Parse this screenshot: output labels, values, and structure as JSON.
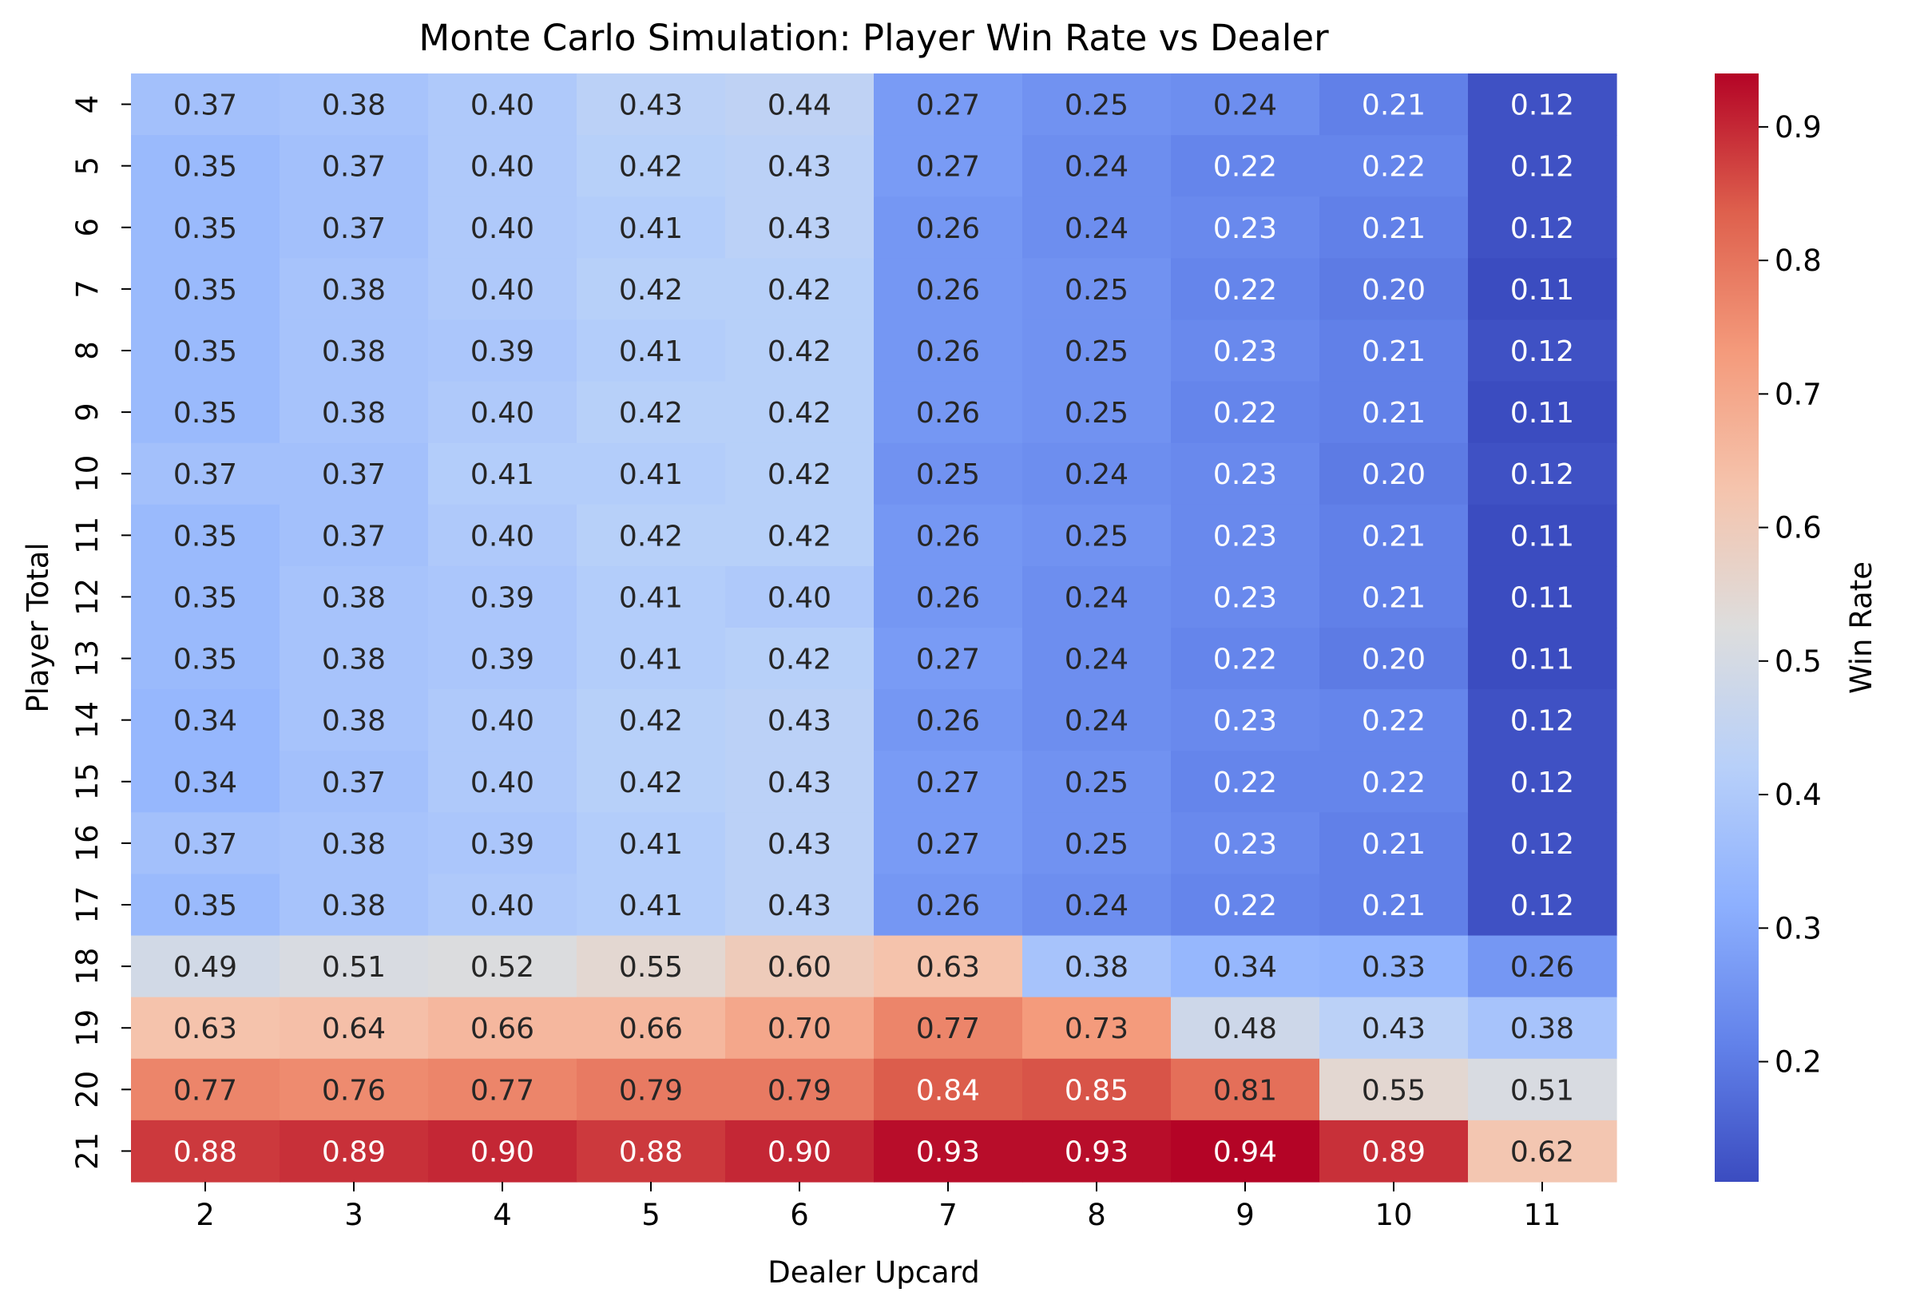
{
  "chart_data": {
    "type": "heatmap",
    "title": "Monte Carlo Simulation: Player Win Rate vs Dealer",
    "xlabel": "Dealer Upcard",
    "ylabel": "Player Total",
    "colorbar_label": "Win Rate",
    "colormap": "coolwarm",
    "x": [
      "2",
      "3",
      "4",
      "5",
      "6",
      "7",
      "8",
      "9",
      "10",
      "11"
    ],
    "y": [
      "4",
      "5",
      "6",
      "7",
      "8",
      "9",
      "10",
      "11",
      "12",
      "13",
      "14",
      "15",
      "16",
      "17",
      "18",
      "19",
      "20",
      "21"
    ],
    "values": [
      [
        0.37,
        0.38,
        0.4,
        0.43,
        0.44,
        0.27,
        0.25,
        0.24,
        0.21,
        0.12
      ],
      [
        0.35,
        0.37,
        0.4,
        0.42,
        0.43,
        0.27,
        0.24,
        0.22,
        0.22,
        0.12
      ],
      [
        0.35,
        0.37,
        0.4,
        0.41,
        0.43,
        0.26,
        0.24,
        0.23,
        0.21,
        0.12
      ],
      [
        0.35,
        0.38,
        0.4,
        0.42,
        0.42,
        0.26,
        0.25,
        0.22,
        0.2,
        0.11
      ],
      [
        0.35,
        0.38,
        0.39,
        0.41,
        0.42,
        0.26,
        0.25,
        0.23,
        0.21,
        0.12
      ],
      [
        0.35,
        0.38,
        0.4,
        0.42,
        0.42,
        0.26,
        0.25,
        0.22,
        0.21,
        0.11
      ],
      [
        0.37,
        0.37,
        0.41,
        0.41,
        0.42,
        0.25,
        0.24,
        0.23,
        0.2,
        0.12
      ],
      [
        0.35,
        0.37,
        0.4,
        0.42,
        0.42,
        0.26,
        0.25,
        0.23,
        0.21,
        0.11
      ],
      [
        0.35,
        0.38,
        0.39,
        0.41,
        0.4,
        0.26,
        0.24,
        0.23,
        0.21,
        0.11
      ],
      [
        0.35,
        0.38,
        0.39,
        0.41,
        0.42,
        0.27,
        0.24,
        0.22,
        0.2,
        0.11
      ],
      [
        0.34,
        0.38,
        0.4,
        0.42,
        0.43,
        0.26,
        0.24,
        0.23,
        0.22,
        0.12
      ],
      [
        0.34,
        0.37,
        0.4,
        0.42,
        0.43,
        0.27,
        0.25,
        0.22,
        0.22,
        0.12
      ],
      [
        0.37,
        0.38,
        0.39,
        0.41,
        0.43,
        0.27,
        0.25,
        0.23,
        0.21,
        0.12
      ],
      [
        0.35,
        0.38,
        0.4,
        0.41,
        0.43,
        0.26,
        0.24,
        0.22,
        0.21,
        0.12
      ],
      [
        0.49,
        0.51,
        0.52,
        0.55,
        0.6,
        0.63,
        0.38,
        0.34,
        0.33,
        0.26
      ],
      [
        0.63,
        0.64,
        0.66,
        0.66,
        0.7,
        0.77,
        0.73,
        0.48,
        0.43,
        0.38
      ],
      [
        0.77,
        0.76,
        0.77,
        0.79,
        0.79,
        0.84,
        0.85,
        0.81,
        0.55,
        0.51
      ],
      [
        0.88,
        0.89,
        0.9,
        0.88,
        0.9,
        0.93,
        0.93,
        0.94,
        0.89,
        0.62
      ]
    ],
    "colorbar_range": [
      0.11,
      0.94
    ],
    "colorbar_ticks": [
      "0.2",
      "0.3",
      "0.4",
      "0.5",
      "0.6",
      "0.7",
      "0.8",
      "0.9"
    ],
    "annotations_format": "0.00",
    "grid": false,
    "legend": "colorbar-right"
  }
}
